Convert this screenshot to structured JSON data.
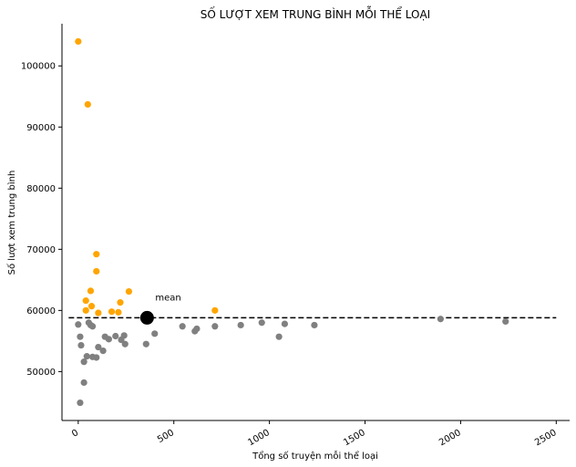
{
  "chart_data": {
    "type": "scatter",
    "title": "SỐ LƯỢT XEM TRUNG BÌNH MỖI THỂ LOẠI",
    "xlabel": "Tổng số truyện mỗi thể loại",
    "ylabel": "Số lượt xem trung bình",
    "xlim": [
      -85,
      2570
    ],
    "ylim": [
      42000,
      106900
    ],
    "x_ticks": [
      0,
      500,
      1000,
      1500,
      2000,
      2500
    ],
    "x_tick_labels": [
      "0",
      "500",
      "1000",
      "1500",
      "2000",
      "2500"
    ],
    "y_ticks": [
      50000,
      60000,
      70000,
      80000,
      90000,
      100000
    ],
    "y_tick_labels": [
      "50000",
      "60000",
      "70000",
      "80000",
      "90000",
      "100000"
    ],
    "grid": false,
    "colors": {
      "above": "#FFA500",
      "below": "#808080",
      "mean": "#000000",
      "mean_line": "#000000"
    },
    "mean": {
      "x": 360,
      "y": 58800,
      "label": "mean",
      "line_x_range": [
        -50,
        2500
      ]
    },
    "series": [
      {
        "group": "above",
        "points": [
          {
            "x": 0,
            "y": 104000
          },
          {
            "x": 50,
            "y": 93700
          },
          {
            "x": 95,
            "y": 69200
          },
          {
            "x": 95,
            "y": 66400
          },
          {
            "x": 65,
            "y": 63200
          },
          {
            "x": 265,
            "y": 63100
          },
          {
            "x": 40,
            "y": 61600
          },
          {
            "x": 220,
            "y": 61300
          },
          {
            "x": 70,
            "y": 60700
          },
          {
            "x": 40,
            "y": 60000
          },
          {
            "x": 715,
            "y": 60000
          },
          {
            "x": 175,
            "y": 59800
          },
          {
            "x": 210,
            "y": 59700
          },
          {
            "x": 105,
            "y": 59600
          }
        ]
      },
      {
        "group": "below",
        "points": [
          {
            "x": 1895,
            "y": 58600
          },
          {
            "x": 2235,
            "y": 58200
          },
          {
            "x": 55,
            "y": 58000
          },
          {
            "x": 960,
            "y": 58000
          },
          {
            "x": 1080,
            "y": 57800
          },
          {
            "x": 0,
            "y": 57700
          },
          {
            "x": 65,
            "y": 57600
          },
          {
            "x": 75,
            "y": 57400
          },
          {
            "x": 545,
            "y": 57400
          },
          {
            "x": 715,
            "y": 57400
          },
          {
            "x": 850,
            "y": 57600
          },
          {
            "x": 1235,
            "y": 57600
          },
          {
            "x": 620,
            "y": 57000
          },
          {
            "x": 610,
            "y": 56600
          },
          {
            "x": 400,
            "y": 56200
          },
          {
            "x": 10,
            "y": 55700
          },
          {
            "x": 140,
            "y": 55700
          },
          {
            "x": 195,
            "y": 55800
          },
          {
            "x": 240,
            "y": 55900
          },
          {
            "x": 1050,
            "y": 55700
          },
          {
            "x": 160,
            "y": 55300
          },
          {
            "x": 225,
            "y": 55200
          },
          {
            "x": 245,
            "y": 54500
          },
          {
            "x": 355,
            "y": 54500
          },
          {
            "x": 15,
            "y": 54300
          },
          {
            "x": 105,
            "y": 54000
          },
          {
            "x": 130,
            "y": 53400
          },
          {
            "x": 45,
            "y": 52500
          },
          {
            "x": 75,
            "y": 52400
          },
          {
            "x": 95,
            "y": 52300
          },
          {
            "x": 30,
            "y": 51600
          },
          {
            "x": 30,
            "y": 48200
          },
          {
            "x": 10,
            "y": 44900
          }
        ]
      }
    ]
  }
}
